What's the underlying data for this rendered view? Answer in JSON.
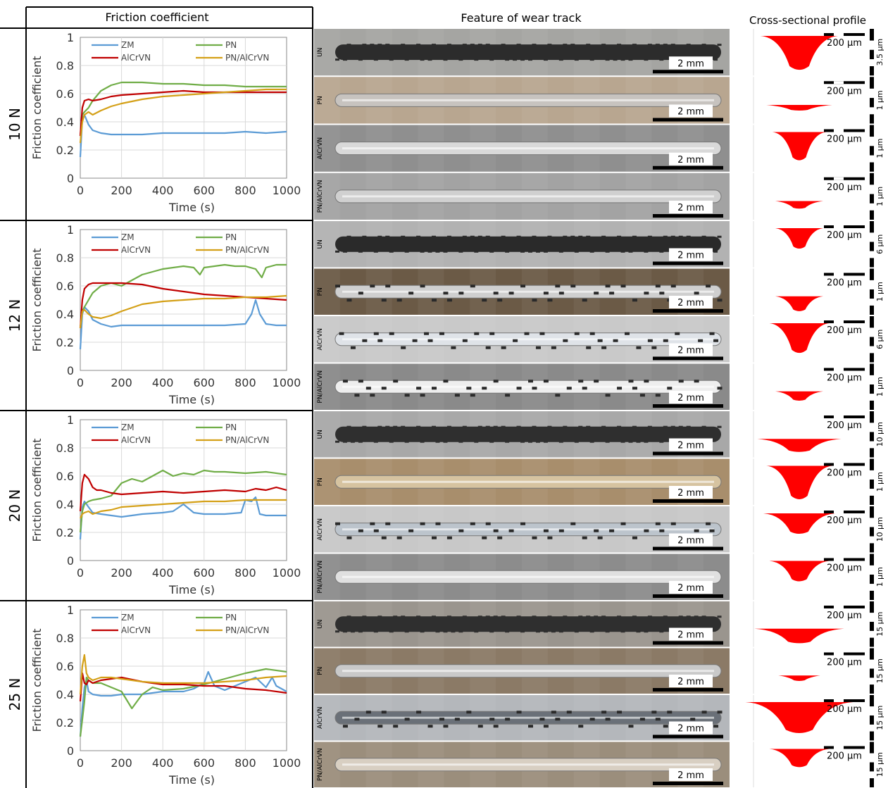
{
  "headers": {
    "friction": "Friction coefficient",
    "feature": "Feature of wear track",
    "profile": "Cross-sectional profile"
  },
  "legend_names": [
    "ZM",
    "PN",
    "AlCrVN",
    "PN/AlCrVN"
  ],
  "series_colors": {
    "ZM": "#5b9bd5",
    "PN": "#70ad47",
    "AlCrVN": "#c00000",
    "PN/AlCrVN": "#d4a017"
  },
  "profile_color": "#ff0000",
  "axis": {
    "xlabel": "Time (s)",
    "ylabel": "Friction coefficient",
    "xlim": [
      0,
      1000
    ],
    "ylim": [
      0,
      1
    ],
    "xticks": [
      "0",
      "200",
      "400",
      "600",
      "800",
      "1000"
    ],
    "yticks": [
      "0",
      "0.2",
      "0.4",
      "0.6",
      "0.8",
      "1"
    ]
  },
  "micro": {
    "scale_2mm": "2 mm",
    "scale_200um": "200 µm"
  },
  "sample_labels": [
    "UN",
    "PN",
    "AlCrVN",
    "PN/AlCrVN"
  ],
  "chart_data": [
    {
      "type": "line",
      "load": "10 N",
      "xlabel": "Time (s)",
      "ylabel": "Friction coefficient",
      "xlim": [
        0,
        1000
      ],
      "ylim": [
        0,
        1
      ],
      "series": [
        {
          "name": "ZM",
          "x": [
            0,
            10,
            20,
            40,
            60,
            100,
            150,
            200,
            300,
            400,
            500,
            600,
            700,
            800,
            900,
            1000
          ],
          "y": [
            0.15,
            0.42,
            0.45,
            0.38,
            0.34,
            0.32,
            0.31,
            0.31,
            0.31,
            0.32,
            0.32,
            0.32,
            0.32,
            0.33,
            0.32,
            0.33
          ]
        },
        {
          "name": "PN",
          "x": [
            0,
            10,
            20,
            40,
            60,
            100,
            150,
            200,
            300,
            400,
            500,
            600,
            700,
            800,
            900,
            1000
          ],
          "y": [
            0.3,
            0.45,
            0.47,
            0.5,
            0.55,
            0.62,
            0.66,
            0.68,
            0.68,
            0.67,
            0.67,
            0.66,
            0.66,
            0.65,
            0.65,
            0.65
          ]
        },
        {
          "name": "AlCrVN",
          "x": [
            0,
            10,
            20,
            40,
            60,
            100,
            150,
            200,
            300,
            400,
            500,
            600,
            700,
            800,
            900,
            1000
          ],
          "y": [
            0.3,
            0.5,
            0.55,
            0.56,
            0.55,
            0.56,
            0.58,
            0.59,
            0.6,
            0.61,
            0.62,
            0.61,
            0.61,
            0.61,
            0.61,
            0.61
          ]
        },
        {
          "name": "PN/AlCrVN",
          "x": [
            0,
            10,
            20,
            40,
            60,
            100,
            150,
            200,
            300,
            400,
            500,
            600,
            700,
            800,
            900,
            1000
          ],
          "y": [
            0.25,
            0.4,
            0.45,
            0.47,
            0.45,
            0.48,
            0.51,
            0.53,
            0.56,
            0.58,
            0.59,
            0.6,
            0.61,
            0.62,
            0.63,
            0.63
          ]
        }
      ]
    },
    {
      "type": "line",
      "load": "12 N",
      "xlabel": "Time (s)",
      "ylabel": "Friction coefficient",
      "xlim": [
        0,
        1000
      ],
      "ylim": [
        0,
        1
      ],
      "series": [
        {
          "name": "ZM",
          "x": [
            0,
            10,
            20,
            40,
            60,
            100,
            150,
            200,
            300,
            400,
            500,
            600,
            700,
            800,
            830,
            850,
            870,
            900,
            950,
            1000
          ],
          "y": [
            0.15,
            0.4,
            0.45,
            0.42,
            0.36,
            0.33,
            0.31,
            0.32,
            0.32,
            0.32,
            0.32,
            0.32,
            0.32,
            0.33,
            0.4,
            0.5,
            0.4,
            0.33,
            0.32,
            0.32
          ]
        },
        {
          "name": "PN",
          "x": [
            0,
            10,
            20,
            40,
            60,
            100,
            150,
            200,
            300,
            400,
            500,
            550,
            580,
            600,
            650,
            700,
            750,
            800,
            850,
            880,
            900,
            950,
            1000
          ],
          "y": [
            0.3,
            0.42,
            0.45,
            0.5,
            0.55,
            0.6,
            0.62,
            0.6,
            0.68,
            0.72,
            0.74,
            0.73,
            0.68,
            0.73,
            0.74,
            0.75,
            0.74,
            0.74,
            0.72,
            0.66,
            0.73,
            0.75,
            0.75
          ]
        },
        {
          "name": "AlCrVN",
          "x": [
            0,
            10,
            20,
            40,
            60,
            100,
            150,
            200,
            300,
            400,
            500,
            600,
            700,
            800,
            900,
            1000
          ],
          "y": [
            0.3,
            0.5,
            0.58,
            0.61,
            0.62,
            0.62,
            0.62,
            0.62,
            0.61,
            0.58,
            0.56,
            0.54,
            0.53,
            0.52,
            0.51,
            0.5
          ]
        },
        {
          "name": "PN/AlCrVN",
          "x": [
            0,
            10,
            20,
            40,
            60,
            100,
            150,
            200,
            300,
            400,
            500,
            600,
            700,
            800,
            900,
            1000
          ],
          "y": [
            0.3,
            0.42,
            0.43,
            0.4,
            0.38,
            0.37,
            0.39,
            0.42,
            0.47,
            0.49,
            0.5,
            0.51,
            0.51,
            0.52,
            0.52,
            0.53
          ]
        }
      ]
    },
    {
      "type": "line",
      "load": "20 N",
      "xlabel": "Time (s)",
      "ylabel": "Friction coefficient",
      "xlim": [
        0,
        1000
      ],
      "ylim": [
        0,
        1
      ],
      "series": [
        {
          "name": "ZM",
          "x": [
            0,
            10,
            20,
            40,
            60,
            100,
            150,
            200,
            300,
            400,
            450,
            480,
            500,
            550,
            600,
            700,
            780,
            800,
            830,
            850,
            870,
            900,
            950,
            1000
          ],
          "y": [
            0.15,
            0.38,
            0.42,
            0.38,
            0.34,
            0.33,
            0.32,
            0.31,
            0.33,
            0.34,
            0.35,
            0.38,
            0.4,
            0.34,
            0.33,
            0.33,
            0.34,
            0.43,
            0.42,
            0.45,
            0.33,
            0.32,
            0.32,
            0.32
          ]
        },
        {
          "name": "PN",
          "x": [
            0,
            10,
            20,
            40,
            60,
            100,
            150,
            200,
            250,
            300,
            350,
            400,
            450,
            500,
            550,
            600,
            650,
            700,
            800,
            900,
            1000
          ],
          "y": [
            0.2,
            0.35,
            0.4,
            0.42,
            0.43,
            0.44,
            0.46,
            0.55,
            0.58,
            0.56,
            0.6,
            0.64,
            0.6,
            0.62,
            0.61,
            0.64,
            0.63,
            0.63,
            0.62,
            0.63,
            0.61
          ]
        },
        {
          "name": "AlCrVN",
          "x": [
            0,
            10,
            20,
            40,
            60,
            80,
            100,
            150,
            200,
            300,
            400,
            500,
            600,
            700,
            800,
            850,
            900,
            950,
            1000
          ],
          "y": [
            0.35,
            0.55,
            0.61,
            0.58,
            0.52,
            0.5,
            0.5,
            0.48,
            0.47,
            0.48,
            0.49,
            0.48,
            0.49,
            0.5,
            0.49,
            0.51,
            0.5,
            0.52,
            0.5
          ]
        },
        {
          "name": "PN/AlCrVN",
          "x": [
            0,
            10,
            20,
            40,
            60,
            100,
            150,
            200,
            300,
            400,
            500,
            600,
            700,
            800,
            900,
            1000
          ],
          "y": [
            0.3,
            0.33,
            0.34,
            0.35,
            0.33,
            0.35,
            0.36,
            0.38,
            0.39,
            0.4,
            0.41,
            0.42,
            0.42,
            0.43,
            0.43,
            0.43
          ]
        }
      ]
    },
    {
      "type": "line",
      "load": "25 N",
      "xlabel": "Time (s)",
      "ylabel": "Friction coefficient",
      "xlim": [
        0,
        1000
      ],
      "ylim": [
        0,
        1
      ],
      "series": [
        {
          "name": "ZM",
          "x": [
            0,
            10,
            20,
            30,
            40,
            60,
            100,
            150,
            200,
            300,
            400,
            500,
            550,
            600,
            620,
            650,
            700,
            750,
            800,
            850,
            900,
            930,
            950,
            1000
          ],
          "y": [
            0.1,
            0.3,
            0.45,
            0.5,
            0.42,
            0.4,
            0.39,
            0.39,
            0.4,
            0.4,
            0.42,
            0.42,
            0.44,
            0.48,
            0.56,
            0.46,
            0.43,
            0.46,
            0.49,
            0.52,
            0.45,
            0.52,
            0.46,
            0.42
          ]
        },
        {
          "name": "PN",
          "x": [
            0,
            10,
            20,
            30,
            40,
            60,
            100,
            150,
            200,
            250,
            300,
            350,
            400,
            500,
            600,
            700,
            800,
            900,
            1000
          ],
          "y": [
            0.1,
            0.22,
            0.35,
            0.52,
            0.5,
            0.48,
            0.48,
            0.45,
            0.42,
            0.3,
            0.4,
            0.45,
            0.43,
            0.44,
            0.47,
            0.51,
            0.55,
            0.58,
            0.56
          ]
        },
        {
          "name": "AlCrVN",
          "x": [
            0,
            10,
            20,
            30,
            40,
            60,
            100,
            150,
            200,
            300,
            400,
            500,
            600,
            700,
            800,
            900,
            1000
          ],
          "y": [
            0.35,
            0.55,
            0.48,
            0.47,
            0.5,
            0.48,
            0.5,
            0.51,
            0.52,
            0.49,
            0.47,
            0.47,
            0.46,
            0.46,
            0.44,
            0.43,
            0.41
          ]
        },
        {
          "name": "PN/AlCrVN",
          "x": [
            0,
            10,
            20,
            30,
            40,
            60,
            100,
            150,
            200,
            300,
            400,
            500,
            600,
            700,
            800,
            900,
            1000
          ],
          "y": [
            0.4,
            0.6,
            0.68,
            0.55,
            0.52,
            0.5,
            0.52,
            0.52,
            0.51,
            0.49,
            0.48,
            0.48,
            0.48,
            0.49,
            0.5,
            0.52,
            0.53
          ]
        }
      ]
    }
  ],
  "wear_tracks": [
    [
      {
        "sample": "UN",
        "profile_depth": "3.5 µm"
      },
      {
        "sample": "PN",
        "profile_depth": "1 µm"
      },
      {
        "sample": "AlCrVN",
        "profile_depth": "1 µm"
      },
      {
        "sample": "PN/AlCrVN",
        "profile_depth": "1 µm"
      }
    ],
    [
      {
        "sample": "UN",
        "profile_depth": "6 µm"
      },
      {
        "sample": "PN",
        "profile_depth": "1 µm"
      },
      {
        "sample": "AlCrVN",
        "profile_depth": "6 µm"
      },
      {
        "sample": "PN/AlCrVN",
        "profile_depth": "1 µm"
      }
    ],
    [
      {
        "sample": "UN",
        "profile_depth": "10 µm"
      },
      {
        "sample": "PN",
        "profile_depth": "1 µm"
      },
      {
        "sample": "AlCrVN",
        "profile_depth": "10 µm"
      },
      {
        "sample": "PN/AlCrVN",
        "profile_depth": "1 µm"
      }
    ],
    [
      {
        "sample": "UN",
        "profile_depth": "15 µm"
      },
      {
        "sample": "PN",
        "profile_depth": "15 µm"
      },
      {
        "sample": "AlCrVN",
        "profile_depth": "15 µm"
      },
      {
        "sample": "PN/AlCrVN",
        "profile_depth": "15 µm"
      }
    ]
  ]
}
